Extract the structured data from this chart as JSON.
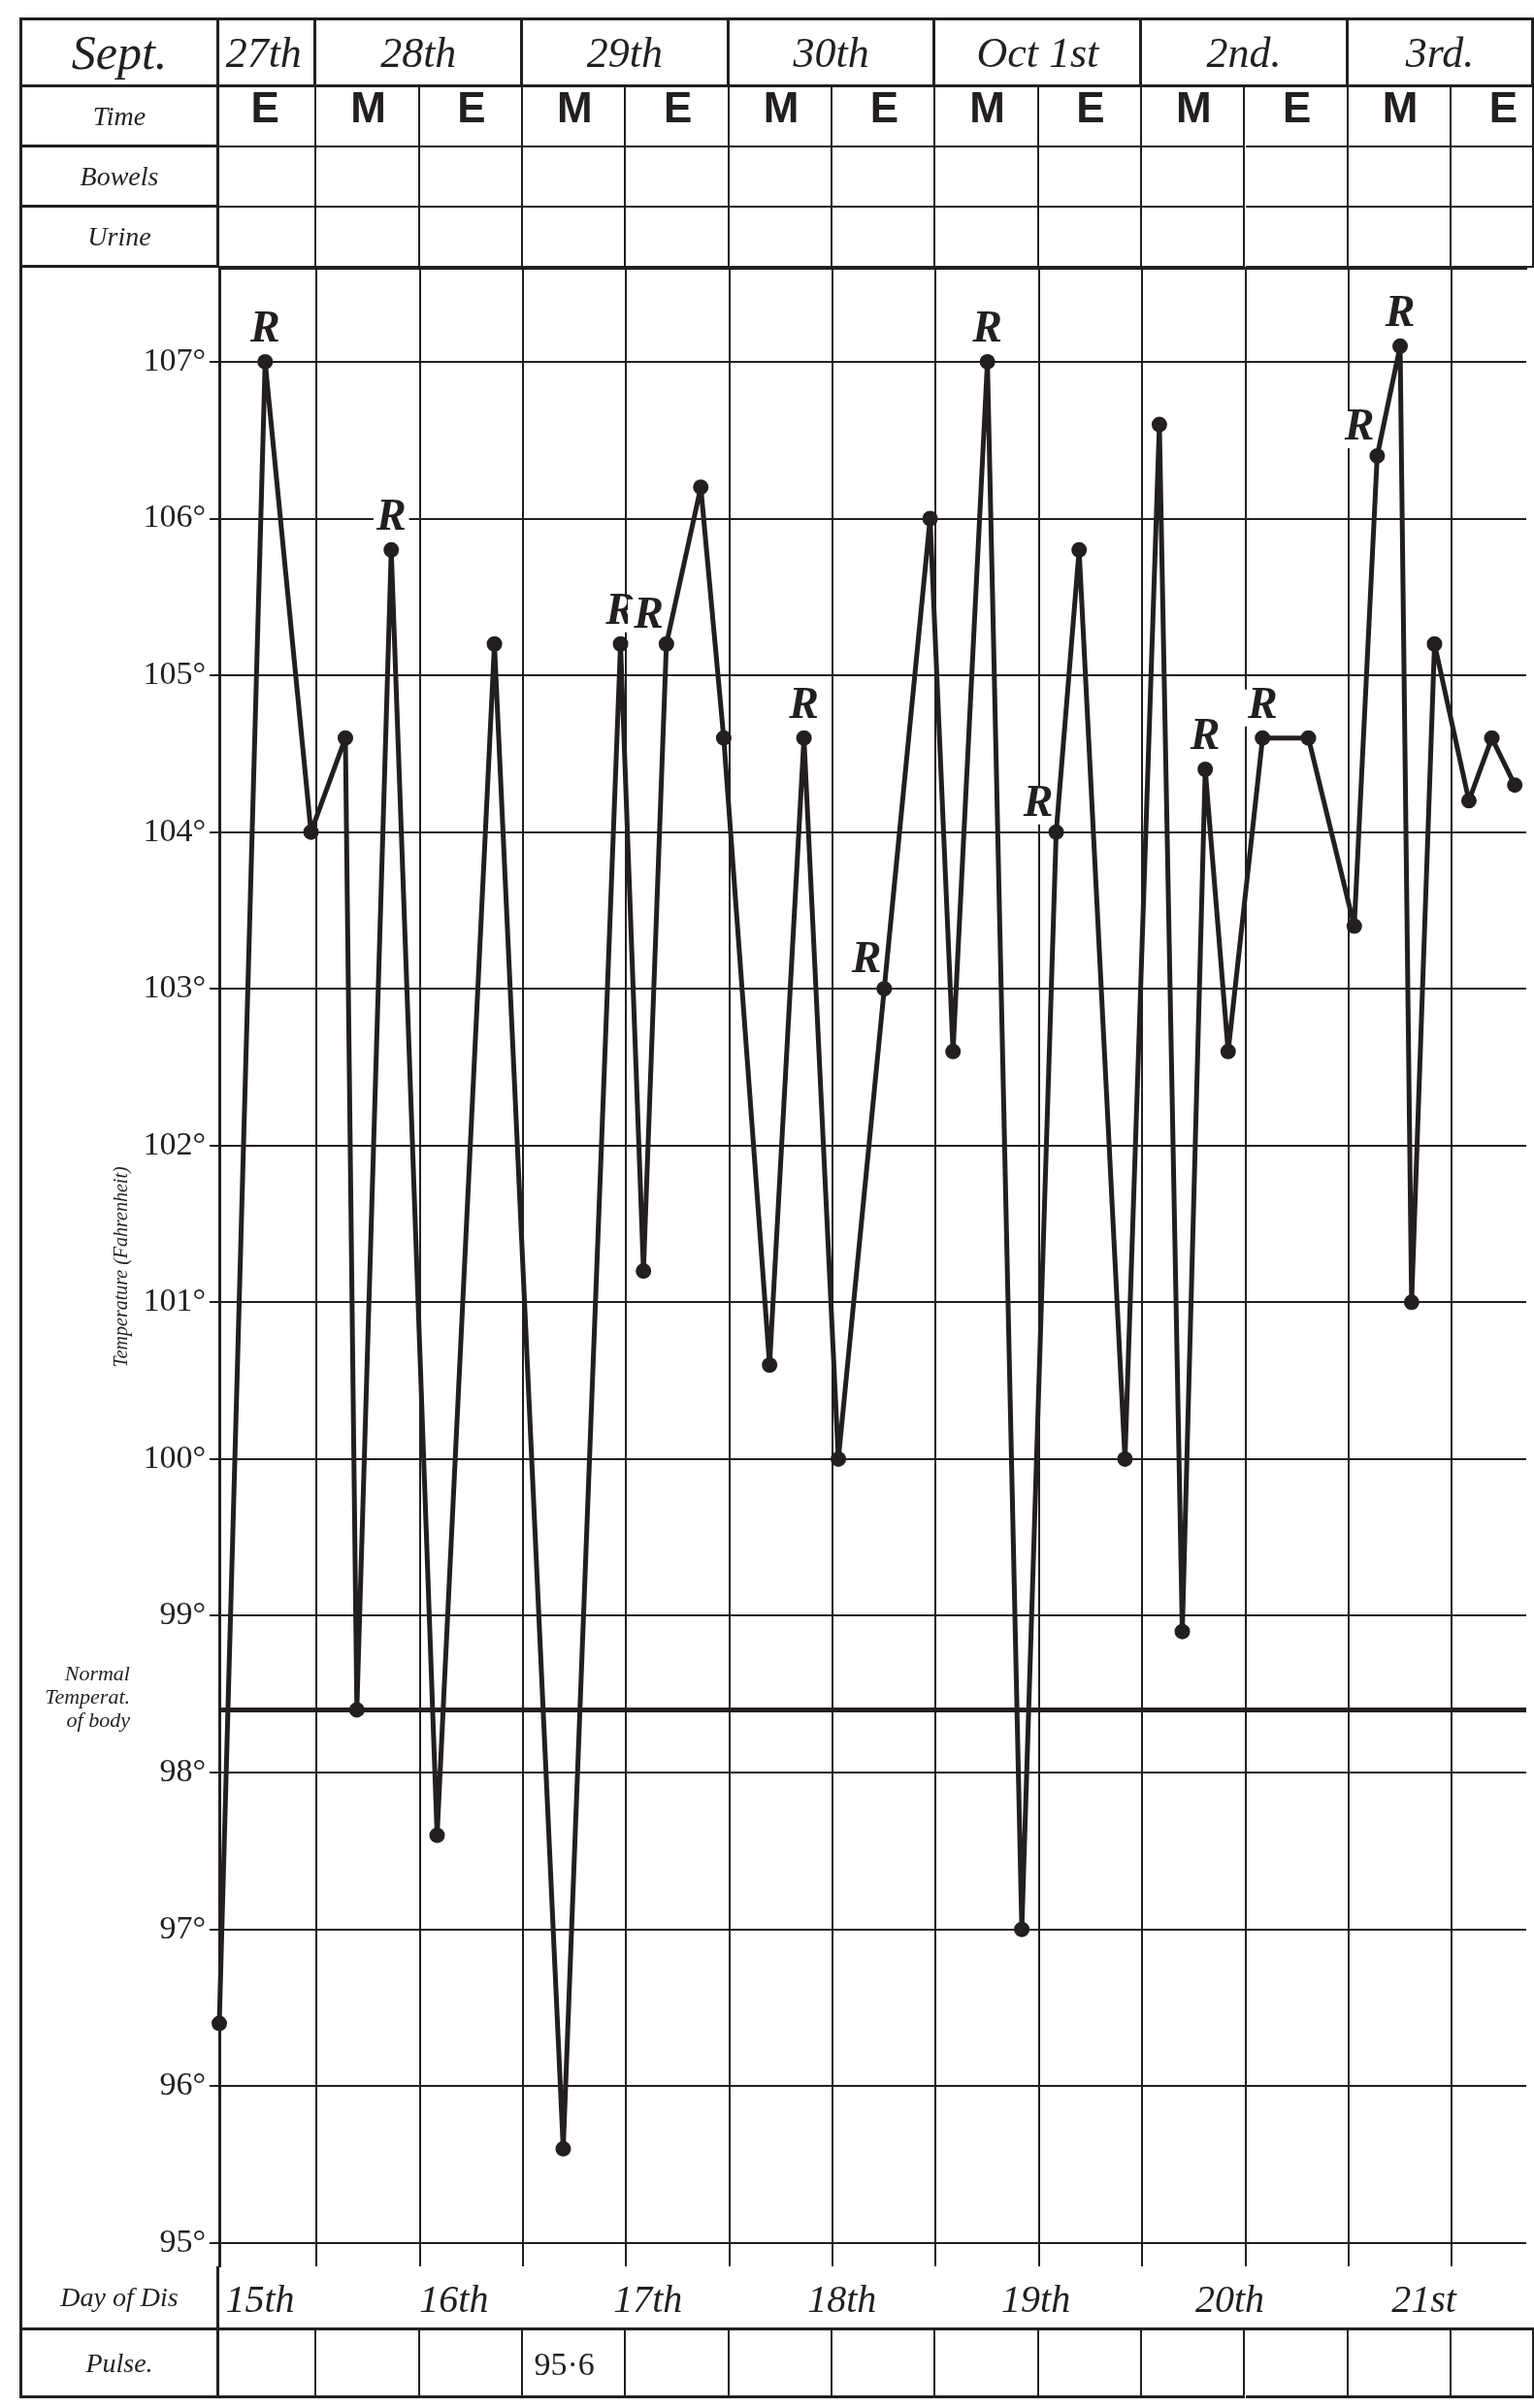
{
  "chart_data": {
    "type": "line",
    "ylabel": "Temperature (Fahrenheit)",
    "xlabel": "Time",
    "categories": [
      null,
      null,
      null,
      null,
      "E",
      null,
      null,
      null,
      null,
      null,
      null,
      null,
      null,
      "M",
      null,
      null,
      null,
      null,
      null,
      null,
      null,
      null,
      "E",
      null,
      null,
      null,
      null,
      null,
      null,
      null,
      null,
      "M",
      null,
      null,
      null,
      null,
      null,
      null,
      null,
      null,
      "E",
      null,
      null,
      null,
      null,
      null,
      null,
      null,
      null,
      "M",
      null,
      null,
      null,
      null,
      null,
      null,
      null,
      null,
      "E",
      null,
      null,
      null,
      null,
      null,
      null,
      null,
      null,
      "M",
      null,
      null,
      null,
      null,
      null,
      null,
      null,
      null,
      "E",
      null,
      null,
      null,
      null,
      null,
      null,
      null,
      null,
      "M",
      null,
      null,
      null,
      null,
      null,
      null,
      null,
      null,
      "E",
      null,
      null,
      null,
      null,
      null,
      null,
      null,
      null,
      "M",
      null,
      null,
      null,
      null,
      null,
      null,
      null,
      null,
      "E",
      null,
      null
    ],
    "ylim": [
      94.85,
      107.6
    ],
    "yticks": [
      {
        "value": 95,
        "label": "95°"
      },
      {
        "value": 96,
        "label": "96°"
      },
      {
        "value": 97,
        "label": "97°"
      },
      {
        "value": 98,
        "label": "98°"
      },
      {
        "value": 99,
        "label": "99°"
      },
      {
        "value": 100,
        "label": "100°"
      },
      {
        "value": 101,
        "label": "101°"
      },
      {
        "value": 102,
        "label": "102°"
      },
      {
        "value": 103,
        "label": "103°"
      },
      {
        "value": 104,
        "label": "104°"
      },
      {
        "value": 105,
        "label": "105°"
      },
      {
        "value": 106,
        "label": "106°"
      },
      {
        "value": 107,
        "label": "107°"
      }
    ],
    "series": [
      {
        "color": "#231f20",
        "values": [
          96.4,
          null,
          null,
          null,
          107.0,
          null,
          null,
          null,
          104.0,
          null,
          null,
          104.6,
          98.4,
          null,
          null,
          105.8,
          null,
          null,
          null,
          97.6,
          null,
          null,
          null,
          null,
          105.2,
          null,
          null,
          null,
          null,
          null,
          95.6,
          null,
          null,
          null,
          null,
          105.2,
          null,
          101.2,
          null,
          105.2,
          null,
          null,
          106.2,
          null,
          104.6,
          null,
          null,
          null,
          100.6,
          null,
          null,
          104.6,
          null,
          null,
          100.0,
          null,
          null,
          null,
          103.0,
          null,
          null,
          null,
          106.0,
          null,
          102.6,
          null,
          null,
          107.0,
          null,
          null,
          97.0,
          null,
          null,
          104.0,
          null,
          105.8,
          null,
          null,
          null,
          100.0,
          null,
          null,
          106.6,
          null,
          98.9,
          null,
          104.4,
          null,
          102.6,
          null,
          null,
          104.6,
          null,
          null,
          null,
          104.6,
          null,
          null,
          null,
          103.4,
          null,
          106.4,
          null,
          107.1,
          101.0,
          null,
          105.2,
          null,
          null,
          104.2,
          null,
          104.6,
          null,
          104.3,
          null
        ],
        "value_labels": [
          null,
          null,
          null,
          null,
          "R",
          null,
          null,
          null,
          null,
          null,
          null,
          null,
          null,
          null,
          null,
          "R",
          null,
          null,
          null,
          null,
          null,
          null,
          null,
          null,
          null,
          null,
          null,
          null,
          null,
          null,
          null,
          null,
          null,
          null,
          null,
          "R",
          null,
          null,
          null,
          "R",
          null,
          null,
          null,
          null,
          null,
          null,
          null,
          null,
          null,
          null,
          null,
          "R",
          null,
          null,
          null,
          null,
          null,
          null,
          "R",
          null,
          null,
          null,
          null,
          null,
          null,
          null,
          null,
          "R",
          null,
          null,
          null,
          null,
          null,
          "R",
          null,
          null,
          null,
          null,
          null,
          null,
          null,
          null,
          null,
          null,
          null,
          null,
          "R",
          null,
          null,
          null,
          null,
          "R",
          null,
          null,
          null,
          null,
          null,
          null,
          null,
          null,
          null,
          "R",
          null,
          "R",
          null,
          null,
          null,
          null,
          null,
          null,
          null,
          null,
          null,
          null,
          null
        ]
      }
    ],
    "marker": "circle",
    "grid": true,
    "legend": false,
    "ref_lines": [
      {
        "axis": "y",
        "value": 98.4,
        "label": "Normal Temperat. of body",
        "color": "#231f20"
      }
    ],
    "annotations": [
      "Sept.",
      "27th",
      "28th",
      "29th",
      "30th",
      "Oct 1st",
      "2nd.",
      "3rd.",
      "Bowels",
      "Urine",
      "Day of Dis",
      "15th",
      "16th",
      "17th",
      "18th",
      "19th",
      "20th",
      "21st",
      "Pulse.",
      "95·6"
    ]
  }
}
